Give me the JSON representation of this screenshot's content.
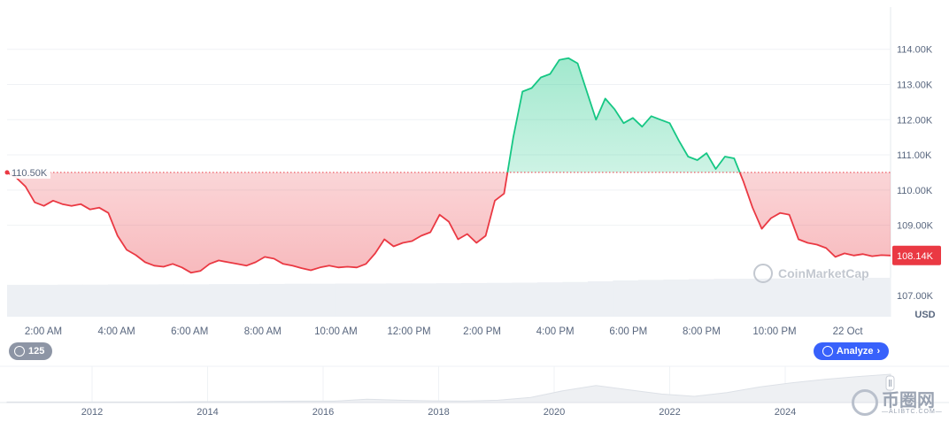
{
  "chart_data": {
    "type": "area",
    "currency": "USD",
    "reference_price_label": "110.50K",
    "reference_price": 110.5,
    "current_price_label": "108.14K",
    "current_price": 108.14,
    "ylim": [
      106.4,
      115.2
    ],
    "y_ticks": [
      {
        "value": 114,
        "label": "114.00K"
      },
      {
        "value": 113,
        "label": "113.00K"
      },
      {
        "value": 112,
        "label": "112.00K"
      },
      {
        "value": 111,
        "label": "111.00K"
      },
      {
        "value": 110,
        "label": "110.00K"
      },
      {
        "value": 109,
        "label": "109.00K"
      },
      {
        "value": 107,
        "label": "107.00K"
      }
    ],
    "x_ticks": [
      "2:00 AM",
      "4:00 AM",
      "6:00 AM",
      "8:00 AM",
      "10:00 AM",
      "12:00 PM",
      "2:00 PM",
      "4:00 PM",
      "6:00 PM",
      "8:00 PM",
      "10:00 PM",
      "22 Oct"
    ],
    "x_hours": [
      0.0,
      0.25,
      0.5,
      0.75,
      1.0,
      1.25,
      1.5,
      1.75,
      2.0,
      2.25,
      2.5,
      2.75,
      3.0,
      3.25,
      3.5,
      3.75,
      4.0,
      4.25,
      4.5,
      4.75,
      5.0,
      5.25,
      5.5,
      5.75,
      6.0,
      6.25,
      6.5,
      6.75,
      7.0,
      7.25,
      7.5,
      7.75,
      8.0,
      8.25,
      8.5,
      8.75,
      9.0,
      9.25,
      9.5,
      9.75,
      10.0,
      10.25,
      10.5,
      10.75,
      11.0,
      11.25,
      11.5,
      11.75,
      12.0,
      12.25,
      12.5,
      12.75,
      13.0,
      13.25,
      13.5,
      13.75,
      14.0,
      14.25,
      14.5,
      14.75,
      15.0,
      15.25,
      15.5,
      15.75,
      16.0,
      16.25,
      16.5,
      16.75,
      17.0,
      17.25,
      17.5,
      17.75,
      18.0,
      18.25,
      18.5,
      18.75,
      19.0,
      19.25,
      19.5,
      19.75,
      20.0,
      20.25,
      20.5,
      20.75,
      21.0,
      21.25,
      21.5,
      21.75,
      22.0,
      22.25,
      22.5,
      22.75,
      23.0,
      23.25,
      23.5,
      23.75,
      24.0
    ],
    "prices": [
      110.5,
      110.35,
      110.1,
      109.65,
      109.55,
      109.7,
      109.6,
      109.55,
      109.6,
      109.45,
      109.5,
      109.35,
      108.7,
      108.3,
      108.15,
      107.95,
      107.85,
      107.82,
      107.9,
      107.8,
      107.65,
      107.7,
      107.9,
      108.0,
      107.95,
      107.9,
      107.85,
      107.95,
      108.1,
      108.05,
      107.9,
      107.85,
      107.78,
      107.72,
      107.8,
      107.85,
      107.8,
      107.82,
      107.8,
      107.9,
      108.2,
      108.6,
      108.4,
      108.5,
      108.55,
      108.7,
      108.8,
      109.3,
      109.1,
      108.6,
      108.75,
      108.5,
      108.7,
      109.7,
      109.9,
      111.5,
      112.8,
      112.9,
      113.2,
      113.3,
      113.7,
      113.75,
      113.6,
      112.8,
      112.0,
      112.6,
      112.3,
      111.9,
      112.05,
      111.8,
      112.1,
      112.0,
      111.9,
      111.4,
      110.95,
      110.85,
      111.05,
      110.6,
      110.95,
      110.9,
      110.25,
      109.5,
      108.9,
      109.2,
      109.35,
      109.3,
      108.6,
      108.5,
      108.45,
      108.35,
      108.1,
      108.2,
      108.14,
      108.18,
      108.12,
      108.15,
      108.14
    ],
    "volume_fraction": [
      0.6,
      0.6,
      0.61,
      0.61,
      0.62,
      0.62,
      0.63,
      0.63,
      0.64,
      0.64,
      0.65,
      0.66,
      0.66,
      0.67,
      0.67,
      0.68,
      0.68,
      0.69,
      0.7,
      0.71,
      0.72,
      0.74,
      0.76,
      0.8,
      0.85,
      0.88,
      0.9,
      0.92,
      0.94,
      0.95,
      0.96,
      0.97,
      0.98,
      0.99,
      1.0
    ],
    "nav_years": [
      "2012",
      "2014",
      "2016",
      "2018",
      "2020",
      "2022",
      "2024"
    ],
    "nav_profile": [
      0.02,
      0.02,
      0.02,
      0.02,
      0.02,
      0.02,
      0.03,
      0.03,
      0.04,
      0.05,
      0.05,
      0.12,
      0.08,
      0.06,
      0.05,
      0.08,
      0.18,
      0.42,
      0.6,
      0.45,
      0.3,
      0.22,
      0.35,
      0.55,
      0.7,
      0.82,
      0.92,
      1.0
    ]
  },
  "badges": {
    "history_count": "125",
    "analyze_label": "Analyze",
    "watermark": "CoinMarketCap"
  },
  "site_logo": {
    "name": "币圈网",
    "domain": "—ALIBTC.COM—"
  },
  "colors": {
    "up": "#16c784",
    "down": "#ea3943",
    "grid": "#eff2f5",
    "accent": "#3861fb"
  }
}
